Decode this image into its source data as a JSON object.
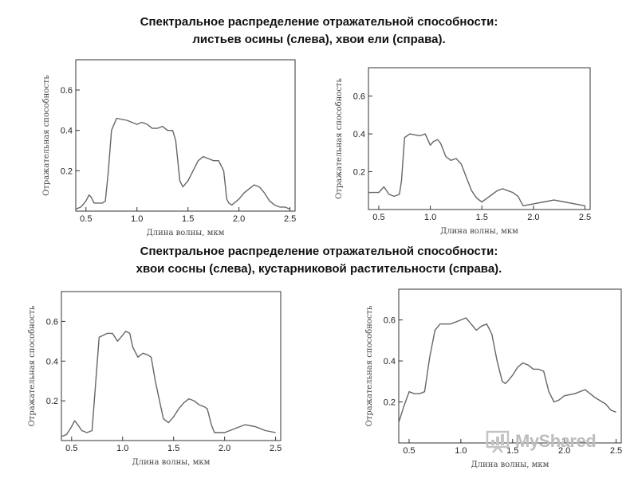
{
  "titles": [
    {
      "line1": "Спектральное распределение отражательной способности:",
      "line2": "листьев осины (слева), хвои ели (справа)."
    },
    {
      "line1": "Спектральное распределение отражательной способности:",
      "line2": "хвои сосны (слева), кустарниковой растительности (справа)."
    }
  ],
  "watermark": {
    "text": "MyShared",
    "icon": "bar-chart-presentation-icon"
  },
  "colors": {
    "curve": "#666666",
    "frame": "#333333"
  },
  "chart_data": [
    {
      "type": "line",
      "xlabel": "Длина волны, мкм",
      "ylabel": "Отражательная способность",
      "xlim": [
        0.4,
        2.55
      ],
      "ylim": [
        0,
        0.75
      ],
      "xticks": [
        0.5,
        1.0,
        1.5,
        2.0,
        2.5
      ],
      "xtick_labels": [
        "0.5",
        "1.0",
        "1.5",
        "2.0",
        "2.5"
      ],
      "yticks": [
        0.2,
        0.4,
        0.6
      ],
      "ytick_labels": [
        "0.2",
        "0.4",
        "0.6"
      ],
      "grid": false,
      "x": [
        0.4,
        0.45,
        0.5,
        0.53,
        0.55,
        0.58,
        0.62,
        0.66,
        0.69,
        0.72,
        0.75,
        0.8,
        0.9,
        1.0,
        1.05,
        1.1,
        1.15,
        1.2,
        1.25,
        1.3,
        1.35,
        1.38,
        1.4,
        1.42,
        1.45,
        1.5,
        1.55,
        1.6,
        1.65,
        1.7,
        1.75,
        1.8,
        1.85,
        1.88,
        1.9,
        1.93,
        2.0,
        2.05,
        2.1,
        2.15,
        2.2,
        2.25,
        2.3,
        2.35,
        2.4,
        2.45,
        2.5
      ],
      "y": [
        0.01,
        0.02,
        0.05,
        0.08,
        0.07,
        0.04,
        0.04,
        0.04,
        0.05,
        0.2,
        0.4,
        0.46,
        0.45,
        0.43,
        0.44,
        0.43,
        0.41,
        0.41,
        0.42,
        0.4,
        0.4,
        0.35,
        0.25,
        0.15,
        0.12,
        0.15,
        0.2,
        0.25,
        0.27,
        0.26,
        0.25,
        0.25,
        0.2,
        0.06,
        0.04,
        0.03,
        0.06,
        0.09,
        0.11,
        0.13,
        0.12,
        0.09,
        0.05,
        0.03,
        0.02,
        0.02,
        0.01
      ]
    },
    {
      "type": "line",
      "xlabel": "Длина волны, мкм",
      "ylabel": "Отражательная способность",
      "xlim": [
        0.4,
        2.55
      ],
      "ylim": [
        0,
        0.75
      ],
      "xticks": [
        0.5,
        1.0,
        1.5,
        2.0,
        2.5
      ],
      "xtick_labels": [
        "0.5",
        "1.0",
        "1.5",
        "2.0",
        "2.5"
      ],
      "yticks": [
        0.2,
        0.4,
        0.6
      ],
      "ytick_labels": [
        "0.2",
        "0.4",
        "0.6"
      ],
      "grid": false,
      "x": [
        0.4,
        0.45,
        0.5,
        0.55,
        0.6,
        0.65,
        0.7,
        0.72,
        0.75,
        0.8,
        0.9,
        0.95,
        1.0,
        1.03,
        1.07,
        1.1,
        1.15,
        1.2,
        1.25,
        1.3,
        1.35,
        1.4,
        1.45,
        1.5,
        1.55,
        1.6,
        1.65,
        1.7,
        1.75,
        1.8,
        1.85,
        1.9,
        2.0,
        2.1,
        2.2,
        2.3,
        2.4,
        2.5
      ],
      "y": [
        0.09,
        0.09,
        0.09,
        0.12,
        0.08,
        0.07,
        0.08,
        0.15,
        0.38,
        0.4,
        0.39,
        0.4,
        0.34,
        0.36,
        0.37,
        0.35,
        0.28,
        0.26,
        0.27,
        0.24,
        0.17,
        0.1,
        0.06,
        0.04,
        0.06,
        0.08,
        0.1,
        0.11,
        0.1,
        0.09,
        0.07,
        0.02,
        0.03,
        0.04,
        0.05,
        0.04,
        0.03,
        0.02
      ]
    },
    {
      "type": "line",
      "xlabel": "Длина волны, мкм",
      "ylabel": "Отражательная способность",
      "xlim": [
        0.4,
        2.55
      ],
      "ylim": [
        0,
        0.75
      ],
      "xticks": [
        0.5,
        1.0,
        1.5,
        2.0,
        2.5
      ],
      "xtick_labels": [
        "0.5",
        "1.0",
        "1.5",
        "2.0",
        "2.5"
      ],
      "yticks": [
        0.2,
        0.4,
        0.6
      ],
      "ytick_labels": [
        "0.2",
        "0.4",
        "0.6"
      ],
      "grid": false,
      "x": [
        0.4,
        0.45,
        0.5,
        0.53,
        0.56,
        0.6,
        0.65,
        0.7,
        0.73,
        0.77,
        0.85,
        0.9,
        0.95,
        1.0,
        1.03,
        1.07,
        1.1,
        1.15,
        1.2,
        1.25,
        1.28,
        1.32,
        1.37,
        1.4,
        1.45,
        1.5,
        1.55,
        1.6,
        1.65,
        1.7,
        1.75,
        1.8,
        1.83,
        1.87,
        1.9,
        2.0,
        2.1,
        2.2,
        2.3,
        2.4,
        2.5
      ],
      "y": [
        0.02,
        0.03,
        0.07,
        0.1,
        0.08,
        0.05,
        0.04,
        0.05,
        0.25,
        0.52,
        0.54,
        0.54,
        0.5,
        0.53,
        0.55,
        0.54,
        0.47,
        0.42,
        0.44,
        0.43,
        0.42,
        0.3,
        0.18,
        0.11,
        0.09,
        0.12,
        0.16,
        0.19,
        0.21,
        0.2,
        0.18,
        0.17,
        0.16,
        0.08,
        0.04,
        0.04,
        0.06,
        0.08,
        0.07,
        0.05,
        0.04
      ]
    },
    {
      "type": "line",
      "xlabel": "Длина волны, мкм",
      "ylabel": "Отражательная способность",
      "xlim": [
        0.4,
        2.55
      ],
      "ylim": [
        0,
        0.75
      ],
      "xticks": [
        0.5,
        1.0,
        1.5,
        2.0,
        2.5
      ],
      "xtick_labels": [
        "0.5",
        "1.0",
        "1.5",
        "2.0",
        "2.5"
      ],
      "yticks": [
        0.2,
        0.4,
        0.6
      ],
      "ytick_labels": [
        "0.2",
        "0.4",
        "0.6"
      ],
      "grid": false,
      "x": [
        0.4,
        0.45,
        0.5,
        0.55,
        0.6,
        0.65,
        0.7,
        0.75,
        0.8,
        0.9,
        1.0,
        1.05,
        1.1,
        1.15,
        1.2,
        1.25,
        1.3,
        1.35,
        1.4,
        1.43,
        1.45,
        1.5,
        1.55,
        1.6,
        1.65,
        1.7,
        1.75,
        1.8,
        1.85,
        1.9,
        1.95,
        2.0,
        2.1,
        2.2,
        2.3,
        2.4,
        2.45,
        2.5
      ],
      "y": [
        0.1,
        0.18,
        0.25,
        0.24,
        0.24,
        0.25,
        0.42,
        0.55,
        0.58,
        0.58,
        0.6,
        0.61,
        0.58,
        0.55,
        0.57,
        0.58,
        0.53,
        0.4,
        0.3,
        0.29,
        0.3,
        0.33,
        0.37,
        0.39,
        0.38,
        0.36,
        0.36,
        0.35,
        0.25,
        0.2,
        0.21,
        0.23,
        0.24,
        0.26,
        0.22,
        0.19,
        0.16,
        0.15
      ]
    }
  ]
}
